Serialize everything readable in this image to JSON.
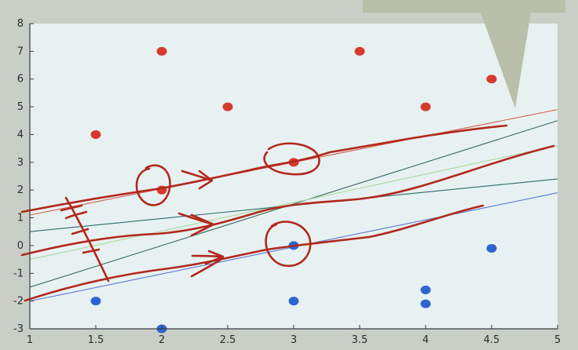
{
  "chart_data": {
    "type": "scatter",
    "title": "",
    "xlabel": "",
    "ylabel": "",
    "xlim": [
      1,
      5
    ],
    "ylim": [
      -3,
      8
    ],
    "x_ticks": [
      "1",
      "1.5",
      "2",
      "2.5",
      "3",
      "3.5",
      "4",
      "4.5",
      "5"
    ],
    "y_ticks": [
      "-3",
      "-2",
      "-1",
      "0",
      "1",
      "2",
      "3",
      "4",
      "5",
      "6",
      "7",
      "8"
    ],
    "grid": false,
    "series": [
      {
        "color": "#d63a2c",
        "points": [
          [
            1.5,
            4
          ],
          [
            2,
            7
          ],
          [
            2,
            2
          ],
          [
            2.5,
            5
          ],
          [
            3,
            3
          ],
          [
            3.5,
            7
          ],
          [
            4,
            5
          ],
          [
            4.5,
            6
          ]
        ]
      },
      {
        "color": "#2f64d0",
        "points": [
          [
            1.5,
            -2
          ],
          [
            2,
            -3
          ],
          [
            3,
            0
          ],
          [
            3,
            -2
          ],
          [
            4,
            -1.6
          ],
          [
            4,
            -2.1
          ],
          [
            4.5,
            -0.1
          ]
        ]
      }
    ],
    "lines": [
      {
        "color": "#d65a4a",
        "from": [
          1,
          1.1
        ],
        "to": [
          5,
          4.9
        ]
      },
      {
        "color": "#3d6a5e",
        "from": [
          1,
          -1.5
        ],
        "to": [
          5,
          4.5
        ]
      },
      {
        "color": "#a8d8a0",
        "from": [
          1,
          -0.5
        ],
        "to": [
          5,
          3.6
        ]
      },
      {
        "color": "#2f6a6a",
        "from": [
          1,
          0.5
        ],
        "to": [
          5,
          2.4
        ]
      },
      {
        "color": "#5b78d8",
        "from": [
          1,
          -2
        ],
        "to": [
          5,
          1.9
        ]
      }
    ]
  },
  "callout": {
    "color": "#b9bfa8"
  },
  "colors": {
    "plot_bg": "#e7f1f1",
    "annotation": "#b2281c",
    "axis": "#3a3d40"
  }
}
